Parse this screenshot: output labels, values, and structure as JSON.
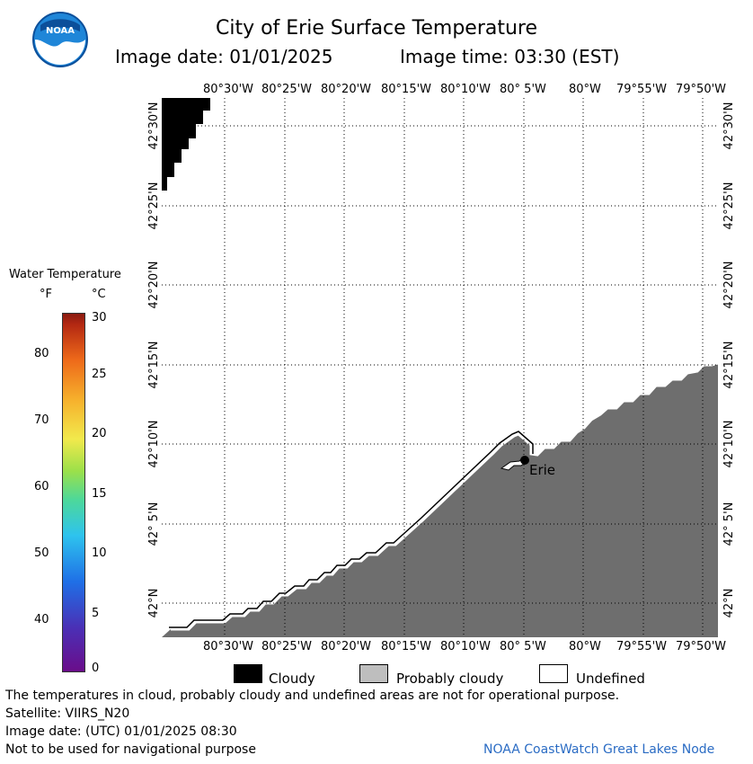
{
  "header": {
    "title": "City of Erie Surface Temperature",
    "image_date_label": "Image date: 01/01/2025",
    "image_time_label": "Image time: 03:30 (EST)",
    "logo_text": "NOAA"
  },
  "map": {
    "top_lon_labels": [
      "80°30'W",
      "80°25'W",
      "80°20'W",
      "80°15'W",
      "80°10'W",
      "80° 5'W",
      "80°W",
      "79°55'W",
      "79°50'W"
    ],
    "bottom_lon_labels": [
      "80°30'W",
      "80°25'W",
      "80°20'W",
      "80°15'W",
      "80°10'W",
      "80° 5'W",
      "80°W",
      "79°55'W",
      "79°50'W"
    ],
    "lat_labels": [
      "42°30'N",
      "42°25'N",
      "42°20'N",
      "42°15'N",
      "42°10'N",
      "42° 5'N",
      "42°N"
    ],
    "city_label": "Erie",
    "colors": {
      "land": "#6e6e6e",
      "cloudy": "#000000",
      "grid": "#000000"
    }
  },
  "legend": {
    "title": "Water Temperature",
    "unit_f": "°F",
    "unit_c": "°C",
    "f_ticks": [
      "80",
      "70",
      "60",
      "50",
      "40"
    ],
    "c_ticks": [
      "30",
      "25",
      "20",
      "15",
      "10",
      "5",
      "0"
    ]
  },
  "key": {
    "cloudy": "Cloudy",
    "probably_cloudy": "Probably cloudy",
    "undefined": "Undefined",
    "colors": {
      "cloudy": "#000000",
      "probably_cloudy": "#bebebe",
      "undefined": "#ffffff"
    }
  },
  "footer": {
    "disclaimer": "The temperatures in cloud, probably cloudy and undefined areas are not for operational purpose.",
    "satellite": "Satellite: VIIRS_N20",
    "utc_date": "Image date: (UTC) 01/01/2025  08:30",
    "nav_warning": "Not to be used for navigational purpose",
    "credit": "NOAA CoastWatch Great Lakes Node"
  }
}
